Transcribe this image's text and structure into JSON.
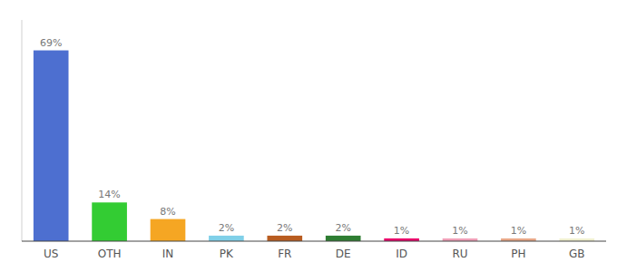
{
  "chart_data": {
    "type": "bar",
    "categories": [
      "US",
      "OTH",
      "IN",
      "PK",
      "FR",
      "DE",
      "ID",
      "RU",
      "PH",
      "GB"
    ],
    "values": [
      69,
      14,
      8,
      2,
      2,
      2,
      1,
      1,
      1,
      1
    ],
    "value_labels": [
      "69%",
      "14%",
      "8%",
      "2%",
      "2%",
      "2%",
      "1%",
      "1%",
      "1%",
      "1%"
    ],
    "colors": [
      "#4d6fd0",
      "#33cc33",
      "#f5a623",
      "#80d0e8",
      "#b85c20",
      "#2e7d32",
      "#e8006a",
      "#f0a0b8",
      "#e8a888",
      "#f0f0d0"
    ],
    "ylim": [
      0,
      80
    ],
    "data_labels": true,
    "tick_labels": "x",
    "grid": false
  }
}
